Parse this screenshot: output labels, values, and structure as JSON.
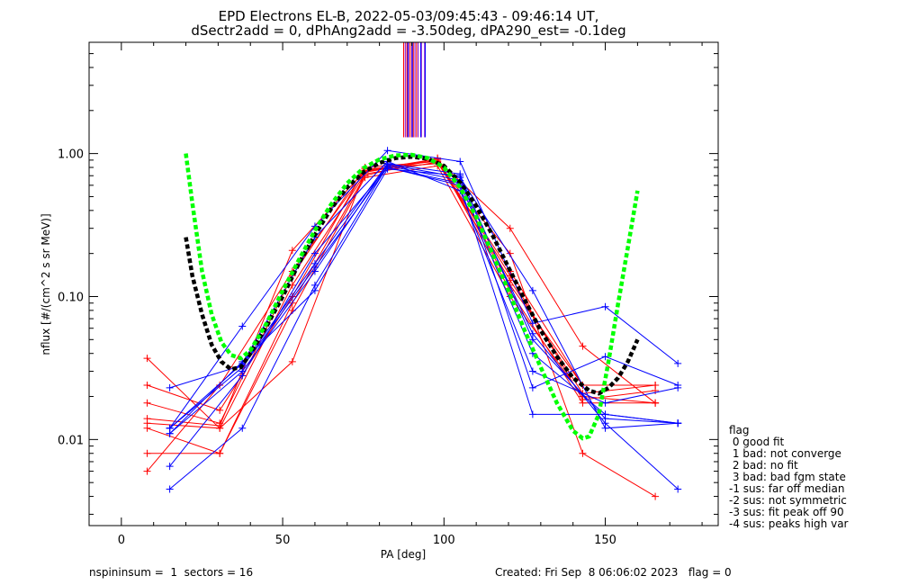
{
  "title_line1": "EPD Electrons EL-B, 2022-05-03/09:45:43 - 09:46:14 UT,",
  "title_line2": "dSectr2add = 0, dPhAng2add = -3.50deg, dPA290_est=  -0.1deg",
  "footer": {
    "left": "nspininsum =  1  sectors = 16",
    "right": "Created: Fri Sep  8 06:06:02 2023   flag = 0"
  },
  "flag_legend": {
    "header": "flag",
    "items": [
      " 0 good fit",
      " 1 bad: not converge",
      " 2 bad: no fit",
      " 3 bad: bad fgm state",
      "-1 sus: far off median",
      "-2 sus: not symmetric",
      "-3 sus: fit peak off 90",
      "-4 sus: peaks high var"
    ]
  },
  "colors": {
    "red": "#ff0000",
    "blue": "#0000ff",
    "green": "#00ff00",
    "black": "#000000"
  },
  "chart_data": {
    "type": "line",
    "xlabel": "PA [deg]",
    "ylabel": "nflux [#/(cm^2 s sr MeV)]",
    "xlim": [
      -10,
      185
    ],
    "ylim": [
      0.0025,
      6
    ],
    "yscale": "log",
    "xticks": [
      "0",
      "50",
      "100",
      "150"
    ],
    "xtick_values": [
      0,
      50,
      100,
      150
    ],
    "yticks": [
      "0.01",
      "0.10",
      "1.00"
    ],
    "ytick_values": [
      0.01,
      0.1,
      1.0
    ],
    "red_x": [
      8,
      30.5,
      53,
      75.5,
      98,
      120.5,
      143,
      165.5
    ],
    "red_series": [
      [
        0.037,
        0.012,
        0.035,
        0.75,
        0.9,
        0.3,
        0.045,
        0.018
      ],
      [
        0.024,
        0.016,
        0.1,
        0.78,
        0.85,
        0.2,
        0.008,
        0.004
      ],
      [
        0.018,
        0.013,
        0.14,
        0.8,
        0.88,
        0.15,
        0.024,
        0.024
      ],
      [
        0.014,
        0.0125,
        0.21,
        0.76,
        0.92,
        0.11,
        0.018,
        0.018
      ],
      [
        0.013,
        0.012,
        0.12,
        0.72,
        0.87,
        0.13,
        0.021,
        0.024
      ],
      [
        0.012,
        0.008,
        0.09,
        0.7,
        0.93,
        0.12,
        0.024,
        0.024
      ],
      [
        0.008,
        0.008,
        0.08,
        0.68,
        0.82,
        0.1,
        0.02,
        0.018
      ],
      [
        0.006,
        0.024,
        0.15,
        0.74,
        0.9,
        0.14,
        0.019,
        0.022
      ]
    ],
    "blue_x": [
      15,
      37.5,
      60,
      82.5,
      105,
      127.5,
      150,
      172.5
    ],
    "blue_series": [
      [
        0.012,
        0.062,
        0.31,
        1.05,
        0.88,
        0.065,
        0.085,
        0.034
      ],
      [
        0.023,
        0.033,
        0.17,
        0.85,
        0.72,
        0.023,
        0.038,
        0.024
      ],
      [
        0.0065,
        0.028,
        0.2,
        0.8,
        0.6,
        0.015,
        0.015,
        0.013
      ],
      [
        0.0045,
        0.012,
        0.12,
        0.82,
        0.65,
        0.055,
        0.013,
        0.0045
      ],
      [
        0.011,
        0.035,
        0.11,
        0.78,
        0.7,
        0.05,
        0.014,
        0.013
      ],
      [
        0.012,
        0.034,
        0.26,
        0.88,
        0.55,
        0.03,
        0.018,
        0.023
      ],
      [
        0.011,
        0.03,
        0.15,
        0.84,
        0.68,
        0.11,
        0.012,
        0.013
      ],
      [
        0.012,
        0.032,
        0.16,
        0.8,
        0.62,
        0.04,
        0.015,
        0.013
      ]
    ],
    "green_fit": {
      "x": [
        20,
        22,
        25,
        28,
        31,
        34,
        37,
        40,
        45,
        50,
        55,
        60,
        65,
        70,
        75,
        80,
        85,
        90,
        95,
        100,
        105,
        110,
        115,
        120,
        125,
        130,
        135,
        140,
        143,
        145,
        148,
        151,
        154,
        157,
        160
      ],
      "y": [
        1.0,
        0.45,
        0.15,
        0.075,
        0.048,
        0.039,
        0.037,
        0.042,
        0.065,
        0.11,
        0.18,
        0.29,
        0.44,
        0.62,
        0.79,
        0.91,
        0.97,
        0.98,
        0.93,
        0.8,
        0.58,
        0.36,
        0.2,
        0.11,
        0.058,
        0.032,
        0.018,
        0.0115,
        0.0102,
        0.0105,
        0.015,
        0.035,
        0.09,
        0.22,
        0.55
      ]
    },
    "black_fit": {
      "x": [
        20,
        22,
        25,
        28,
        31,
        34,
        37,
        40,
        45,
        50,
        55,
        60,
        65,
        70,
        75,
        80,
        85,
        90,
        95,
        100,
        105,
        110,
        115,
        120,
        125,
        130,
        135,
        140,
        145,
        148,
        151,
        154,
        157,
        160
      ],
      "y": [
        0.26,
        0.14,
        0.075,
        0.046,
        0.035,
        0.031,
        0.032,
        0.04,
        0.062,
        0.1,
        0.17,
        0.27,
        0.41,
        0.58,
        0.74,
        0.86,
        0.93,
        0.95,
        0.92,
        0.82,
        0.63,
        0.43,
        0.27,
        0.16,
        0.095,
        0.058,
        0.038,
        0.027,
        0.022,
        0.021,
        0.023,
        0.027,
        0.035,
        0.05
      ]
    },
    "top_marker_x": {
      "red": [
        87.5,
        88.5,
        89.5,
        90.5,
        91.5
      ],
      "purple": [
        88,
        89,
        90,
        91,
        92,
        93,
        94
      ],
      "blue": [
        88.8,
        90.2,
        92.8,
        94.2
      ]
    },
    "top_marker_colors": {
      "red": "#ff0000",
      "purple": "#8800cc",
      "blue": "#0000ff"
    }
  }
}
